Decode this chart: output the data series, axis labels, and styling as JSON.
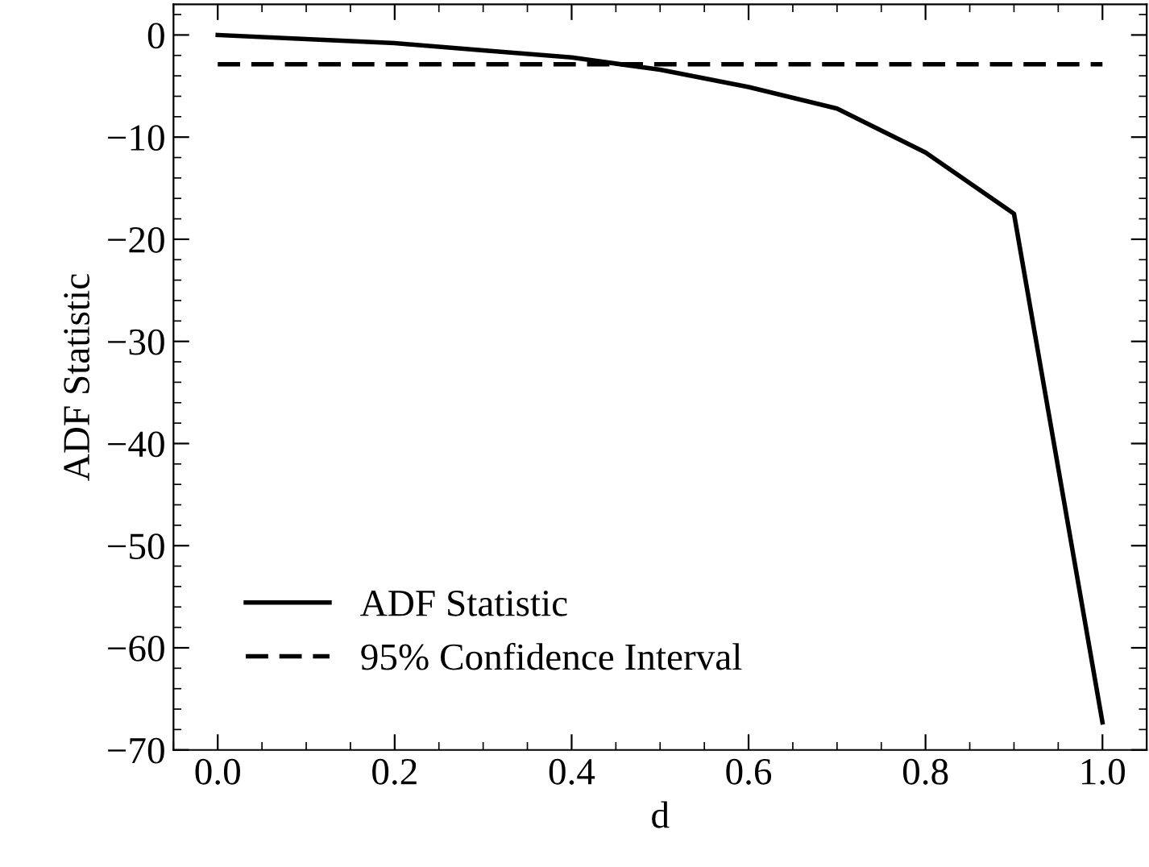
{
  "chart_data": {
    "type": "line",
    "xlabel": "d",
    "ylabel": "ADF Statistic",
    "xlim": [
      -0.05,
      1.05
    ],
    "xticks": [
      {
        "value": 0.0,
        "label": "0.0"
      },
      0.2,
      0.4,
      0.6,
      0.8,
      {
        "value": 1.0,
        "label": "1.0"
      }
    ],
    "ylim": [
      -70,
      3
    ],
    "yticks": [
      {
        "value": -70,
        "label": "−70"
      },
      {
        "value": -60,
        "label": "−60"
      },
      {
        "value": -50,
        "label": "−50"
      },
      {
        "value": -40,
        "label": "−40"
      },
      {
        "value": -30,
        "label": "−30"
      },
      {
        "value": -20,
        "label": "−20"
      },
      {
        "value": -10,
        "label": "−10"
      },
      0
    ],
    "grid": false,
    "legend": "bottom left",
    "series": [
      {
        "name": "ADF Statistic",
        "color": "#000000",
        "line_style": "solid",
        "x": [
          0.0,
          0.1,
          0.2,
          0.3,
          0.4,
          0.5,
          0.6,
          0.7,
          0.8,
          0.9,
          1.0
        ],
        "values": [
          0.0,
          -0.4,
          -0.8,
          -1.5,
          -2.2,
          -3.4,
          -5.1,
          -7.2,
          -11.5,
          -17.5,
          -67.3
        ]
      },
      {
        "name": "95% Confidence Interval",
        "color": "#000000",
        "line_style": "dashed",
        "x": [
          0.0,
          1.0
        ],
        "values": [
          -2.86,
          -2.86
        ]
      }
    ]
  }
}
